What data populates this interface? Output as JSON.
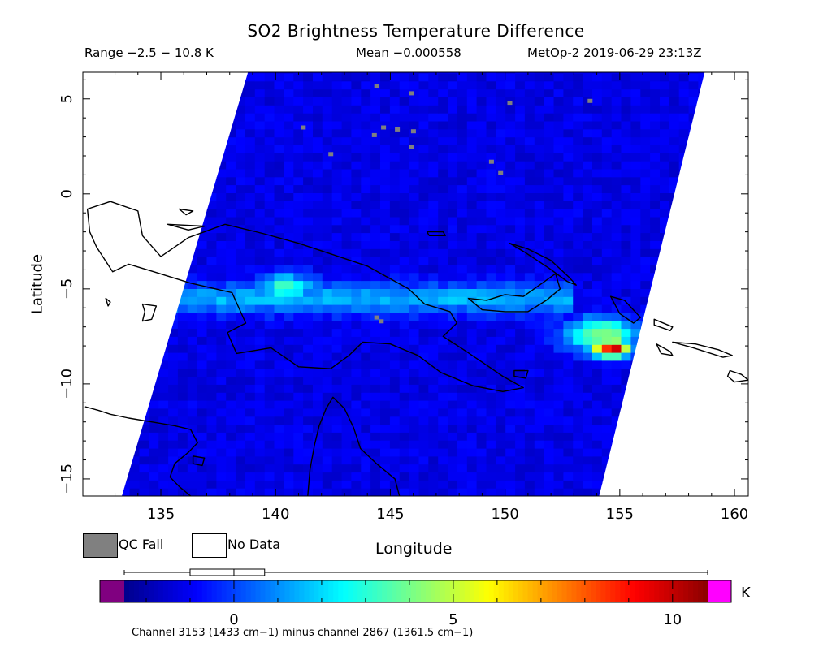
{
  "chart_data": {
    "type": "heatmap",
    "title": "SO2 Brightness Temperature Difference",
    "range_text": "Range −2.5 − 10.8 K",
    "mean_text": "Mean −0.000558",
    "satellite_text": "MetOp-2 2019-06-29 23:13Z",
    "xlabel": "Longitude",
    "ylabel": "Latitude",
    "xlim": [
      131.6,
      160.6
    ],
    "ylim": [
      -15.9,
      6.4
    ],
    "x_ticks": [
      135,
      140,
      145,
      150,
      155,
      160
    ],
    "x_tick_labels": [
      "135",
      "140",
      "145",
      "150",
      "155",
      "160"
    ],
    "y_ticks": [
      5,
      0,
      -5,
      -10,
      -15
    ],
    "y_tick_labels": [
      "5",
      "0",
      "−5",
      "−10",
      "−15"
    ],
    "swath_corners_lon_lat": [
      [
        138.8,
        6.4
      ],
      [
        158.7,
        6.4
      ],
      [
        154.1,
        -15.9
      ],
      [
        133.3,
        -15.9
      ]
    ],
    "value_range": [
      -2.5,
      10.8
    ],
    "mean": -0.000558,
    "units": "K",
    "background_value": -1.2,
    "features": [
      {
        "kind": "band",
        "lon": [
          133.5,
          153.0
        ],
        "lat": [
          -6.3,
          -4.7
        ],
        "value": 1.5
      },
      {
        "kind": "blob",
        "lon": 140.5,
        "lat": -4.9,
        "sigma_lon": 1.3,
        "sigma_lat": 0.7,
        "value": 3.3
      },
      {
        "kind": "blob",
        "lon": 154.2,
        "lat": -7.4,
        "sigma_lon": 1.6,
        "sigma_lat": 0.9,
        "value": 4.5
      },
      {
        "kind": "blob",
        "lon": 154.6,
        "lat": -8.1,
        "sigma_lon": 0.9,
        "sigma_lat": 0.5,
        "value": 9.0
      },
      {
        "kind": "blob",
        "lon": 154.8,
        "lat": -8.2,
        "sigma_lon": 0.35,
        "sigma_lat": 0.25,
        "value": 10.6
      }
    ],
    "qc_fail_pixels_lon_lat": [
      [
        144.3,
        5.8
      ],
      [
        142.3,
        2.2
      ],
      [
        141.1,
        3.6
      ],
      [
        144.6,
        3.6
      ],
      [
        145.2,
        3.5
      ],
      [
        145.9,
        3.4
      ],
      [
        144.2,
        3.2
      ],
      [
        145.8,
        2.6
      ],
      [
        150.1,
        4.9
      ],
      [
        149.3,
        1.8
      ],
      [
        149.7,
        1.2
      ],
      [
        153.6,
        5.0
      ],
      [
        144.3,
        -6.4
      ],
      [
        144.5,
        -6.6
      ],
      [
        145.8,
        5.4
      ]
    ],
    "colorbar": {
      "min": -2.5,
      "max": 10.8,
      "ticks": [
        0,
        5,
        10
      ],
      "tick_labels": [
        "0",
        "5",
        "10"
      ],
      "units_label": "K",
      "below_color": "#800080",
      "above_color": "#ff00ff",
      "colors": [
        "#00008b",
        "#0000ff",
        "#0080ff",
        "#00ffff",
        "#80ff80",
        "#ffff00",
        "#ff8000",
        "#ff0000",
        "#8b0000"
      ],
      "boxplot": {
        "whisker_low": -2.5,
        "q1": -1.0,
        "median": 0.0,
        "q3": 0.7,
        "whisker_high": 10.8
      }
    },
    "legend": [
      {
        "label": "QC Fail",
        "color": "#808080"
      },
      {
        "label": "No Data",
        "color": "#ffffff"
      }
    ],
    "footnote": "Channel 3153 (1433 cm−1) minus channel 2867 (1361.5 cm−1)",
    "coastlines": [
      {
        "name": "new-guinea",
        "closed": true,
        "pts": [
          [
            131.8,
            -0.8
          ],
          [
            132.8,
            -0.4
          ],
          [
            134.0,
            -0.9
          ],
          [
            134.2,
            -2.2
          ],
          [
            135.0,
            -3.3
          ],
          [
            136.2,
            -2.3
          ],
          [
            137.8,
            -1.6
          ],
          [
            139.5,
            -2.1
          ],
          [
            141.0,
            -2.6
          ],
          [
            142.5,
            -3.2
          ],
          [
            144.0,
            -3.8
          ],
          [
            145.8,
            -5.0
          ],
          [
            146.5,
            -5.8
          ],
          [
            147.6,
            -6.2
          ],
          [
            147.9,
            -6.8
          ],
          [
            147.3,
            -7.5
          ],
          [
            148.2,
            -8.2
          ],
          [
            149.3,
            -9.1
          ],
          [
            149.9,
            -9.6
          ],
          [
            150.8,
            -10.2
          ],
          [
            149.9,
            -10.4
          ],
          [
            148.6,
            -10.1
          ],
          [
            147.2,
            -9.4
          ],
          [
            146.2,
            -8.5
          ],
          [
            145.0,
            -7.9
          ],
          [
            143.8,
            -7.8
          ],
          [
            143.2,
            -8.5
          ],
          [
            142.4,
            -9.2
          ],
          [
            141.0,
            -9.1
          ],
          [
            139.8,
            -8.1
          ],
          [
            138.3,
            -8.4
          ],
          [
            137.9,
            -7.3
          ],
          [
            138.7,
            -6.8
          ],
          [
            138.1,
            -5.2
          ],
          [
            136.3,
            -4.7
          ],
          [
            134.7,
            -4.1
          ],
          [
            133.6,
            -3.7
          ],
          [
            132.9,
            -4.1
          ],
          [
            132.2,
            -2.8
          ],
          [
            131.9,
            -2.0
          ],
          [
            131.8,
            -0.8
          ]
        ]
      },
      {
        "name": "new-britain",
        "closed": true,
        "pts": [
          [
            148.4,
            -5.5
          ],
          [
            149.2,
            -5.6
          ],
          [
            150.0,
            -5.3
          ],
          [
            150.8,
            -5.4
          ],
          [
            151.5,
            -4.8
          ],
          [
            152.2,
            -4.2
          ],
          [
            152.4,
            -5.0
          ],
          [
            151.8,
            -5.6
          ],
          [
            151.0,
            -6.2
          ],
          [
            150.0,
            -6.2
          ],
          [
            149.0,
            -6.1
          ],
          [
            148.4,
            -5.5
          ]
        ]
      },
      {
        "name": "new-ireland",
        "closed": true,
        "pts": [
          [
            150.2,
            -2.6
          ],
          [
            151.0,
            -2.9
          ],
          [
            152.0,
            -3.5
          ],
          [
            152.8,
            -4.4
          ],
          [
            153.1,
            -4.8
          ],
          [
            152.7,
            -4.6
          ],
          [
            151.9,
            -3.9
          ],
          [
            150.9,
            -3.1
          ],
          [
            150.2,
            -2.6
          ]
        ]
      },
      {
        "name": "bougainville",
        "closed": true,
        "pts": [
          [
            154.6,
            -5.4
          ],
          [
            155.2,
            -5.6
          ],
          [
            155.9,
            -6.5
          ],
          [
            155.6,
            -6.8
          ],
          [
            155.0,
            -6.3
          ],
          [
            154.6,
            -5.4
          ]
        ]
      },
      {
        "name": "manus",
        "closed": true,
        "pts": [
          [
            146.6,
            -2.0
          ],
          [
            147.3,
            -2.0
          ],
          [
            147.4,
            -2.2
          ],
          [
            146.7,
            -2.2
          ],
          [
            146.6,
            -2.0
          ]
        ]
      },
      {
        "name": "halmahera",
        "closed": true,
        "pts": [
          [
            127.5,
            1.8
          ],
          [
            128.6,
            0.7
          ],
          [
            128.2,
            0.0
          ],
          [
            127.9,
            -0.5
          ],
          [
            128.5,
            -0.9
          ],
          [
            129.5,
            -0.8
          ],
          [
            128.8,
            0.3
          ],
          [
            128.2,
            1.5
          ],
          [
            127.5,
            1.8
          ]
        ]
      },
      {
        "name": "waigeo",
        "closed": true,
        "pts": [
          [
            130.2,
            0.0
          ],
          [
            131.3,
            -0.1
          ],
          [
            131.0,
            -0.4
          ],
          [
            130.4,
            -0.3
          ],
          [
            130.2,
            0.0
          ]
        ]
      },
      {
        "name": "biak",
        "closed": true,
        "pts": [
          [
            135.8,
            -0.8
          ],
          [
            136.4,
            -0.9
          ],
          [
            136.1,
            -1.1
          ],
          [
            135.8,
            -0.8
          ]
        ]
      },
      {
        "name": "yapen",
        "closed": true,
        "pts": [
          [
            135.3,
            -1.6
          ],
          [
            136.9,
            -1.7
          ],
          [
            136.2,
            -1.9
          ],
          [
            135.3,
            -1.6
          ]
        ]
      },
      {
        "name": "aru",
        "closed": true,
        "pts": [
          [
            134.2,
            -5.8
          ],
          [
            134.8,
            -5.9
          ],
          [
            134.6,
            -6.6
          ],
          [
            134.2,
            -6.7
          ],
          [
            134.3,
            -6.2
          ],
          [
            134.2,
            -5.8
          ]
        ]
      },
      {
        "name": "kai",
        "closed": true,
        "pts": [
          [
            132.6,
            -5.5
          ],
          [
            132.8,
            -5.7
          ],
          [
            132.7,
            -5.9
          ],
          [
            132.6,
            -5.5
          ]
        ]
      },
      {
        "name": "d-entrecasteaux",
        "closed": true,
        "pts": [
          [
            150.4,
            -9.3
          ],
          [
            151.0,
            -9.3
          ],
          [
            150.9,
            -9.7
          ],
          [
            150.4,
            -9.6
          ],
          [
            150.4,
            -9.3
          ]
        ]
      },
      {
        "name": "choiseul",
        "closed": true,
        "pts": [
          [
            156.5,
            -6.6
          ],
          [
            157.3,
            -7.0
          ],
          [
            157.2,
            -7.2
          ],
          [
            156.5,
            -6.9
          ],
          [
            156.5,
            -6.6
          ]
        ]
      },
      {
        "name": "santa-isabel",
        "closed": true,
        "pts": [
          [
            157.3,
            -7.8
          ],
          [
            158.2,
            -8.1
          ],
          [
            159.5,
            -8.6
          ],
          [
            159.9,
            -8.5
          ],
          [
            159.3,
            -8.2
          ],
          [
            158.3,
            -7.9
          ],
          [
            157.3,
            -7.8
          ]
        ]
      },
      {
        "name": "new-georgia",
        "closed": true,
        "pts": [
          [
            156.6,
            -7.9
          ],
          [
            157.2,
            -8.3
          ],
          [
            157.3,
            -8.5
          ],
          [
            156.8,
            -8.4
          ],
          [
            156.6,
            -7.9
          ]
        ]
      },
      {
        "name": "guadalcanal",
        "closed": true,
        "pts": [
          [
            159.8,
            -9.3
          ],
          [
            160.3,
            -9.5
          ],
          [
            160.6,
            -9.8
          ],
          [
            160.0,
            -9.9
          ],
          [
            159.7,
            -9.6
          ],
          [
            159.8,
            -9.3
          ]
        ]
      },
      {
        "name": "australia",
        "closed": false,
        "pts": [
          [
            131.7,
            -11.2
          ],
          [
            132.3,
            -11.4
          ],
          [
            132.8,
            -11.6
          ],
          [
            133.6,
            -11.8
          ],
          [
            134.6,
            -12.0
          ],
          [
            135.6,
            -12.2
          ],
          [
            136.3,
            -12.4
          ],
          [
            136.6,
            -13.1
          ],
          [
            136.2,
            -13.6
          ],
          [
            135.6,
            -14.2
          ],
          [
            135.4,
            -14.9
          ],
          [
            135.8,
            -15.4
          ],
          [
            136.3,
            -15.9
          ]
        ]
      },
      {
        "name": "cape-york",
        "closed": false,
        "pts": [
          [
            141.4,
            -15.9
          ],
          [
            141.5,
            -14.5
          ],
          [
            141.7,
            -13.2
          ],
          [
            141.9,
            -12.2
          ],
          [
            142.2,
            -11.3
          ],
          [
            142.5,
            -10.7
          ],
          [
            143.0,
            -11.3
          ],
          [
            143.4,
            -12.3
          ],
          [
            143.7,
            -13.4
          ],
          [
            144.4,
            -14.2
          ],
          [
            145.2,
            -15.0
          ],
          [
            145.4,
            -15.9
          ]
        ]
      },
      {
        "name": "groote-eylandt",
        "closed": true,
        "pts": [
          [
            136.4,
            -13.8
          ],
          [
            136.9,
            -13.9
          ],
          [
            136.8,
            -14.3
          ],
          [
            136.4,
            -14.2
          ],
          [
            136.4,
            -13.8
          ]
        ]
      }
    ]
  }
}
